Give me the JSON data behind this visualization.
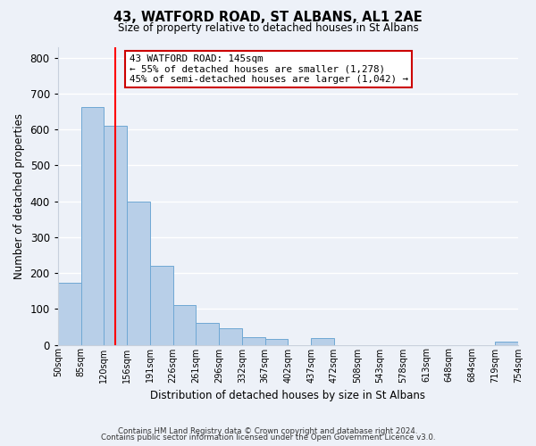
{
  "title": "43, WATFORD ROAD, ST ALBANS, AL1 2AE",
  "subtitle": "Size of property relative to detached houses in St Albans",
  "xlabel": "Distribution of detached houses by size in St Albans",
  "ylabel": "Number of detached properties",
  "bar_heights": [
    172,
    663,
    610,
    400,
    220,
    110,
    62,
    45,
    20,
    15,
    0,
    18,
    0,
    0,
    0,
    0,
    0,
    0,
    0,
    8
  ],
  "tick_labels": [
    "50sqm",
    "85sqm",
    "120sqm",
    "156sqm",
    "191sqm",
    "226sqm",
    "261sqm",
    "296sqm",
    "332sqm",
    "367sqm",
    "402sqm",
    "437sqm",
    "472sqm",
    "508sqm",
    "543sqm",
    "578sqm",
    "613sqm",
    "648sqm",
    "684sqm",
    "719sqm",
    "754sqm"
  ],
  "bar_color": "#b8cfe8",
  "bar_edge_color": "#6fa8d4",
  "bar_edge_width": 0.7,
  "property_line_x": 2.5,
  "property_line_color": "red",
  "ylim": [
    0,
    830
  ],
  "yticks": [
    0,
    100,
    200,
    300,
    400,
    500,
    600,
    700,
    800
  ],
  "annotation_text": "43 WATFORD ROAD: 145sqm\n← 55% of detached houses are smaller (1,278)\n45% of semi-detached houses are larger (1,042) →",
  "annotation_box_color": "white",
  "annotation_box_edge_color": "#cc0000",
  "footer_line1": "Contains HM Land Registry data © Crown copyright and database right 2024.",
  "footer_line2": "Contains public sector information licensed under the Open Government Licence v3.0.",
  "background_color": "#edf1f8",
  "grid_color": "white"
}
